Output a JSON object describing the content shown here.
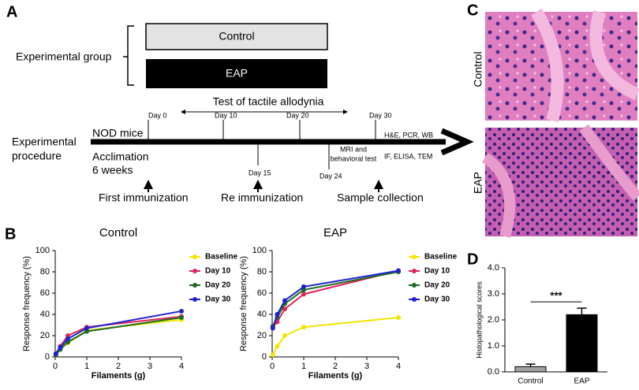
{
  "panel_labels": [
    "A",
    "B",
    "C",
    "D"
  ],
  "panel_a": {
    "group_label": "Experimental group",
    "groups": [
      "Control",
      "EAP"
    ],
    "procedure_label": [
      "Experimental",
      "procedure"
    ],
    "test_label": "Test  of tactile allodynia",
    "animal": "NOD mice",
    "acclimation": [
      "Acclimation",
      "6 weeks"
    ],
    "days_above": [
      "Day 0",
      "Day 10",
      "Day 20",
      "Day 30"
    ],
    "days_below": [
      "Day 15",
      "Day 24"
    ],
    "mri": [
      "MRI and",
      "behavioral test"
    ],
    "assays": [
      "H&E, PCR, WB",
      "IF, ELISA, TEM"
    ],
    "events": [
      "First immunization",
      "Re immunization",
      "Sample collection"
    ]
  },
  "panel_c": {
    "labels": [
      "Control",
      "EAP"
    ]
  },
  "chart_data": [
    {
      "type": "line",
      "title": "Control",
      "x_label": "Filaments (g)",
      "y_label": "Response frequency (%)",
      "x": [
        0.02,
        0.16,
        0.4,
        1,
        4
      ],
      "series": [
        {
          "name": "Baseline",
          "color": "#f0e600",
          "values": [
            2,
            8,
            13,
            25,
            35
          ]
        },
        {
          "name": "Day 10",
          "color": "#e0245a",
          "values": [
            3,
            10,
            20,
            28,
            38
          ]
        },
        {
          "name": "Day 20",
          "color": "#1d6b1d",
          "values": [
            2,
            7,
            14,
            24,
            37
          ]
        },
        {
          "name": "Day 30",
          "color": "#1e22d0",
          "values": [
            3,
            9,
            17,
            27,
            43
          ]
        }
      ],
      "xlim": [
        0,
        4
      ],
      "xticks": [
        0,
        1,
        2,
        3,
        4
      ],
      "ylim": [
        0,
        100
      ],
      "yticks": [
        0,
        20,
        40,
        60,
        80,
        100
      ]
    },
    {
      "type": "line",
      "title": "EAP",
      "x_label": "Filaments (g)",
      "y_label": "Response frequency (%)",
      "x": [
        0.02,
        0.16,
        0.4,
        1,
        4
      ],
      "series": [
        {
          "name": "Baseline",
          "color": "#f0e600",
          "values": [
            2,
            10,
            20,
            28,
            37
          ]
        },
        {
          "name": "Day 10",
          "color": "#e0245a",
          "values": [
            28,
            33,
            45,
            59,
            81
          ]
        },
        {
          "name": "Day 20",
          "color": "#1d6b1d",
          "values": [
            29,
            37,
            50,
            63,
            80
          ]
        },
        {
          "name": "Day 30",
          "color": "#1e22d0",
          "values": [
            27,
            40,
            53,
            66,
            81
          ]
        }
      ],
      "xlim": [
        0,
        4
      ],
      "xticks": [
        0,
        1,
        2,
        3,
        4
      ],
      "ylim": [
        0,
        100
      ],
      "yticks": [
        0,
        20,
        40,
        60,
        80,
        100
      ]
    },
    {
      "type": "bar",
      "y_label": "Histopathological scores",
      "categories": [
        "Control",
        "EAP"
      ],
      "values": [
        0.2,
        2.2
      ],
      "errors": [
        0.1,
        0.25
      ],
      "colors": [
        "#a0a0a0",
        "#000000"
      ],
      "annotation": "***",
      "ylim": [
        0,
        4
      ],
      "yticks": [
        {
          "value": 0,
          "label": "0.0"
        },
        {
          "value": 1,
          "label": "1.0"
        },
        {
          "value": 2,
          "label": "2.0"
        },
        {
          "value": 3,
          "label": "3.0"
        },
        {
          "value": 4,
          "label": "4.0"
        }
      ]
    }
  ]
}
